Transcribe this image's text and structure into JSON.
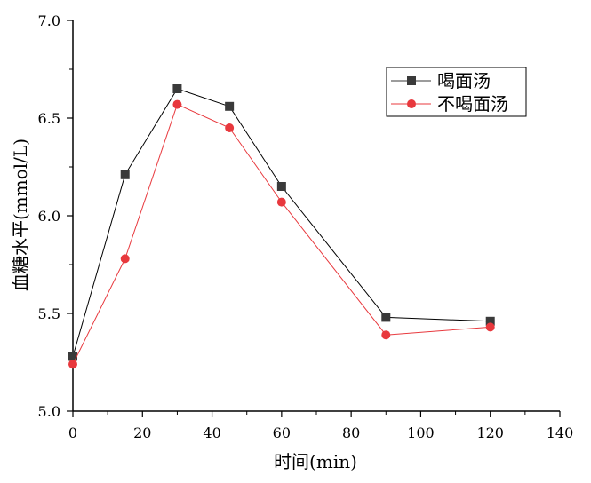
{
  "chart_data": {
    "type": "line",
    "title": "",
    "xlabel": "时间(min)",
    "ylabel": "血糖水平(mmol/L)",
    "xlim": [
      0,
      140
    ],
    "ylim": [
      5.0,
      7.0
    ],
    "xticks": [
      0,
      20,
      40,
      60,
      80,
      100,
      120,
      140
    ],
    "yticks": [
      5.0,
      5.5,
      6.0,
      6.5,
      7.0
    ],
    "ytick_labels": [
      "5.0",
      "5.5",
      "6.0",
      "6.5",
      "7.0"
    ],
    "grid": false,
    "legend_position": "top-right",
    "series": [
      {
        "name": "喝面汤",
        "marker": "square",
        "color": "#3a3a3a",
        "x": [
          0,
          15,
          30,
          45,
          60,
          90,
          120
        ],
        "y": [
          5.28,
          6.21,
          6.65,
          6.56,
          6.15,
          5.48,
          5.46
        ]
      },
      {
        "name": "不喝面汤",
        "marker": "circle",
        "color": "#e8383d",
        "x": [
          0,
          15,
          30,
          45,
          60,
          90,
          120
        ],
        "y": [
          5.24,
          5.78,
          6.57,
          6.45,
          6.07,
          5.39,
          5.43
        ]
      }
    ]
  }
}
